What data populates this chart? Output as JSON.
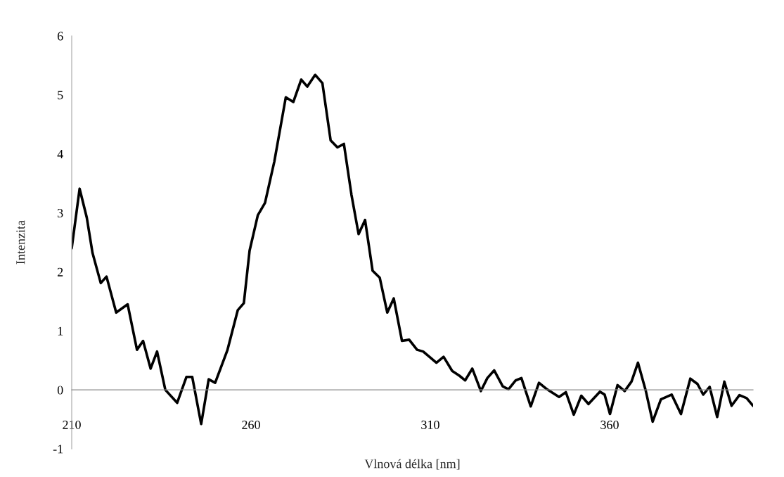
{
  "chart_data": {
    "type": "line",
    "xlabel": "Vlnová délka [nm]",
    "ylabel": "Intenzita",
    "xlim": [
      210,
      400
    ],
    "xticks": [
      210,
      260,
      310,
      360
    ],
    "ylim": [
      -1,
      6
    ],
    "yticks": [
      {
        "value": -1,
        "label": "-1"
      },
      0,
      1,
      2,
      3,
      4,
      5,
      6
    ],
    "grid": false,
    "legend": false,
    "marker": "none",
    "line_style": "solid",
    "series": [
      {
        "color": "#000000",
        "x": [
          210,
          212.2,
          214.2,
          215.8,
          218.1,
          219.7,
          222.4,
          225.6,
          228.2,
          229.9,
          232,
          233.8,
          236.1,
          239.4,
          242,
          243.6,
          246.1,
          248.2,
          250,
          253.4,
          256.3,
          258,
          259.6,
          261.9,
          263.9,
          266.5,
          269.7,
          271.8,
          274,
          275.7,
          277.9,
          279.9,
          282.2,
          284.1,
          285.9,
          288,
          290,
          291.8,
          293.9,
          295.9,
          298,
          299.8,
          302.1,
          304.1,
          306.3,
          308,
          311.7,
          313.7,
          316.1,
          318.1,
          319.7,
          321.7,
          324.1,
          325.9,
          327.8,
          330.2,
          331.8,
          333.8,
          335.4,
          338,
          340.3,
          342.3,
          345.9,
          347.8,
          350,
          352.1,
          354.1,
          357.3,
          358.6,
          360.1,
          362.2,
          364.2,
          366.1,
          367.9,
          370.1,
          372,
          374.3,
          377.3,
          379.9,
          382.5,
          384.5,
          386.1,
          387.9,
          390,
          392,
          394,
          396.2,
          398.2,
          400
        ],
        "values": [
          2.4,
          3.41,
          2.92,
          2.32,
          1.81,
          1.92,
          1.31,
          1.45,
          0.68,
          0.83,
          0.36,
          0.65,
          0.0,
          -0.22,
          0.22,
          0.22,
          -0.58,
          0.18,
          0.12,
          0.67,
          1.35,
          1.47,
          2.36,
          2.96,
          3.17,
          3.87,
          4.96,
          4.88,
          5.26,
          5.14,
          5.34,
          5.2,
          4.23,
          4.11,
          4.17,
          3.31,
          2.64,
          2.88,
          2.02,
          1.9,
          1.31,
          1.55,
          0.83,
          0.85,
          0.68,
          0.65,
          0.46,
          0.56,
          0.32,
          0.24,
          0.16,
          0.36,
          -0.02,
          0.2,
          0.33,
          0.06,
          0.01,
          0.16,
          0.2,
          -0.28,
          0.12,
          0.02,
          -0.12,
          -0.04,
          -0.42,
          -0.1,
          -0.24,
          -0.03,
          -0.08,
          -0.41,
          0.08,
          -0.02,
          0.14,
          0.46,
          -0.02,
          -0.54,
          -0.16,
          -0.08,
          -0.41,
          0.19,
          0.1,
          -0.08,
          0.05,
          -0.46,
          0.14,
          -0.27,
          -0.09,
          -0.14,
          -0.27
        ]
      }
    ]
  }
}
